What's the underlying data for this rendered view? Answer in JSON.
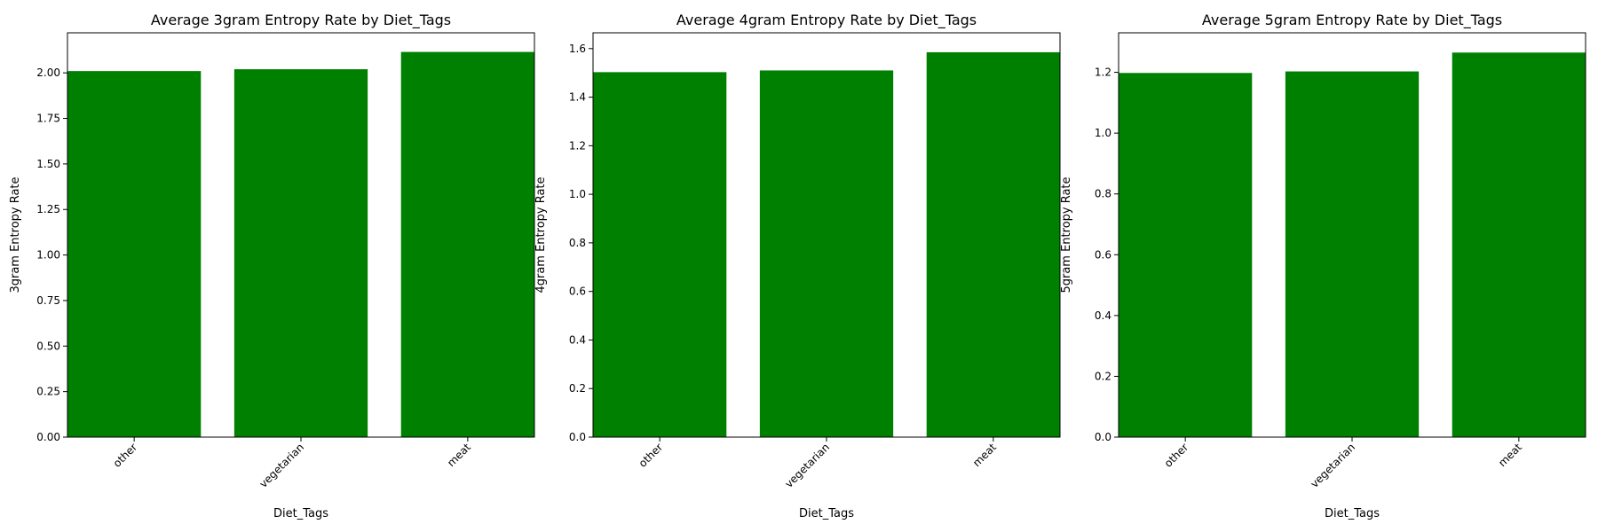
{
  "figure": {
    "bar_color": "#008000",
    "background": "#ffffff"
  },
  "chart_data": [
    {
      "type": "bar",
      "title": "Average 3gram Entropy Rate by Diet_Tags",
      "xlabel": "Diet_Tags",
      "ylabel": "3gram Entropy Rate",
      "categories": [
        "other",
        "vegetarian",
        "meat"
      ],
      "values": [
        2.01,
        2.02,
        2.115
      ],
      "ylim": [
        0,
        2.22
      ],
      "yticks": [
        "0.00",
        "0.25",
        "0.50",
        "0.75",
        "1.00",
        "1.25",
        "1.50",
        "1.75",
        "2.00"
      ],
      "grid": false,
      "legend": "none",
      "xtick_rotation": "45 degrees"
    },
    {
      "type": "bar",
      "title": "Average 4gram Entropy Rate by Diet_Tags",
      "xlabel": "Diet_Tags",
      "ylabel": "4gram Entropy Rate",
      "categories": [
        "other",
        "vegetarian",
        "meat"
      ],
      "values": [
        1.503,
        1.51,
        1.585
      ],
      "ylim": [
        0,
        1.665
      ],
      "yticks": [
        "0.0",
        "0.2",
        "0.4",
        "0.6",
        "0.8",
        "1.0",
        "1.2",
        "1.4",
        "1.6"
      ],
      "grid": false,
      "legend": "none",
      "xtick_rotation": "45 degrees"
    },
    {
      "type": "bar",
      "title": "Average 5gram Entropy Rate by Diet_Tags",
      "xlabel": "Diet_Tags",
      "ylabel": "5gram Entropy Rate",
      "categories": [
        "other",
        "vegetarian",
        "meat"
      ],
      "values": [
        1.198,
        1.203,
        1.265
      ],
      "ylim": [
        0,
        1.33
      ],
      "yticks": [
        "0.0",
        "0.2",
        "0.4",
        "0.6",
        "0.8",
        "1.0",
        "1.2"
      ],
      "grid": false,
      "legend": "none",
      "xtick_rotation": "45 degrees"
    }
  ]
}
